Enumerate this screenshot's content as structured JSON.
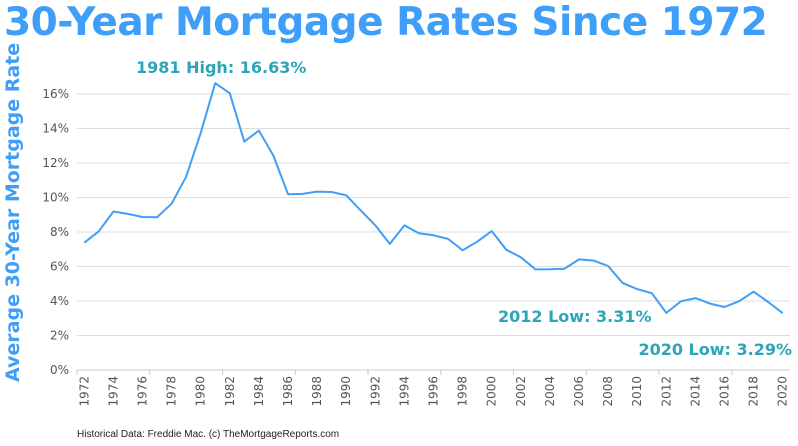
{
  "chart_data": {
    "type": "line",
    "title": "30-Year Mortgage Rates Since 1972",
    "ylabel": "Average 30-Year Mortgage Rate",
    "xlabel": "",
    "ylim": [
      0,
      17
    ],
    "yticks": [
      "0%",
      "2%",
      "4%",
      "6%",
      "8%",
      "10%",
      "12%",
      "14%",
      "16%"
    ],
    "grid": true,
    "line_color": "#3f9ef7",
    "annotation_color": "#2aa6b8",
    "x": [
      1972,
      1973,
      1974,
      1975,
      1976,
      1977,
      1978,
      1979,
      1980,
      1981,
      1982,
      1983,
      1984,
      1985,
      1986,
      1987,
      1988,
      1989,
      1990,
      1991,
      1992,
      1993,
      1994,
      1995,
      1996,
      1997,
      1998,
      1999,
      2000,
      2001,
      2002,
      2003,
      2004,
      2005,
      2006,
      2007,
      2008,
      2009,
      2010,
      2011,
      2012,
      2013,
      2014,
      2015,
      2016,
      2017,
      2018,
      2019,
      2020
    ],
    "values": [
      7.38,
      8.04,
      9.19,
      9.05,
      8.87,
      8.85,
      9.64,
      11.2,
      13.74,
      16.63,
      16.04,
      13.24,
      13.88,
      12.43,
      10.19,
      10.21,
      10.34,
      10.32,
      10.13,
      9.25,
      8.39,
      7.31,
      8.38,
      7.93,
      7.81,
      7.6,
      6.94,
      7.44,
      8.05,
      6.97,
      6.54,
      5.83,
      5.84,
      5.87,
      6.41,
      6.34,
      6.03,
      5.04,
      4.69,
      4.45,
      3.31,
      3.98,
      4.17,
      3.85,
      3.65,
      3.99,
      4.54,
      3.94,
      3.29
    ],
    "annotations": [
      "1981 High: 16.63%",
      "2012 Low: 3.31%",
      "2020 Low: 3.29%"
    ]
  },
  "footer": "Historical Data: Freddie Mac.  (c) TheMortgageReports.com"
}
